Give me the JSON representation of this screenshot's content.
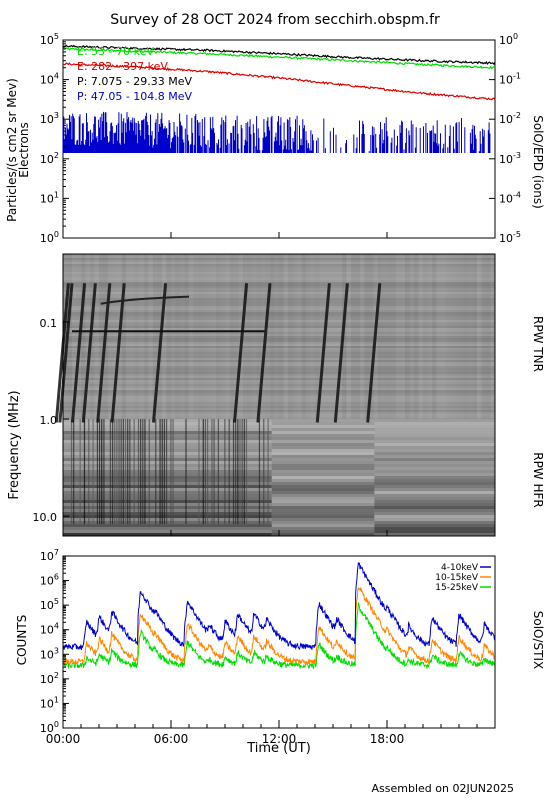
{
  "title": "Survey of 28 OCT 2024 from secchirh.obspm.fr",
  "footer": "Assembled on 02JUN2025",
  "chart_data": [
    {
      "id": "epd",
      "type": "line",
      "yscale": "log",
      "ylim": [
        1,
        100000
      ],
      "y2lim": [
        1e-05,
        1
      ],
      "ylabel": "Particles/(s cm2 sr Mev)",
      "ylabel2": "Electrons",
      "right_label": "SolO/EPD (ions)",
      "y_ticks": [
        "10^0",
        "10^1",
        "10^2",
        "10^3",
        "10^4",
        "10^5"
      ],
      "y2_ticks": [
        "10^-5",
        "10^-4",
        "10^-3",
        "10^-2",
        "10^-1",
        "10^0"
      ],
      "xlim_hours": [
        0,
        24
      ],
      "series": [
        {
          "name": "E: 53 - 70 keV",
          "color": "#00dd00",
          "x": [
            0,
            4,
            8,
            12,
            16,
            20,
            24
          ],
          "y": [
            60000,
            52000,
            45000,
            37000,
            30000,
            24000,
            20000
          ]
        },
        {
          "name": "E: 282 - 397 keV",
          "color": "#dd0000",
          "x": [
            0,
            4,
            8,
            12,
            16,
            20,
            24
          ],
          "y": [
            25000,
            21000,
            16000,
            11000,
            7000,
            4500,
            3200
          ]
        },
        {
          "name": "P: 7.075 - 29.33 MeV",
          "color": "#000000",
          "x": [
            0,
            4,
            8,
            12,
            16,
            20,
            24
          ],
          "y": [
            70000,
            62000,
            55000,
            45000,
            36000,
            30000,
            26000
          ]
        },
        {
          "name": "P: 47.05 - 104.8 MeV",
          "color": "#0000cc",
          "x": [
            0,
            4,
            8,
            12,
            16,
            20,
            24
          ],
          "y": [
            400,
            350,
            330,
            300,
            280,
            270,
            260
          ]
        }
      ]
    },
    {
      "id": "rpw",
      "type": "heatmap",
      "ylabel": "Frequency (MHz)",
      "y_ticks": [
        "0.1",
        "1.0",
        "10.0"
      ],
      "yscale": "log",
      "ylim_mhz": [
        0.02,
        16
      ],
      "labels_right": [
        "RPW TNR",
        "RPW HFR"
      ],
      "colormap": "grayscale",
      "burst_hours": [
        0.3,
        0.5,
        1.2,
        1.8,
        2.6,
        3.4,
        5.7,
        10.2,
        11.5,
        14.8,
        15.8,
        17.6
      ],
      "drifting_line_hours": [
        0.5,
        11.2
      ]
    },
    {
      "id": "stix",
      "type": "line",
      "yscale": "log",
      "ylim": [
        1,
        10000000
      ],
      "ylabel": "COUNTS",
      "right_label": "SolO/STIX",
      "y_ticks": [
        "10^0",
        "10^1",
        "10^2",
        "10^3",
        "10^4",
        "10^5",
        "10^6",
        "10^7"
      ],
      "x_ticks": [
        "00:00",
        "06:00",
        "12:00",
        "18:00"
      ],
      "x_tick_hours": [
        0,
        6,
        12,
        18
      ],
      "xlabel": "Time (UT)",
      "series": [
        {
          "name": "4-10keV",
          "color": "#0000cc",
          "baseline": 2000
        },
        {
          "name": "10-15keV",
          "color": "#ff8800",
          "baseline": 500
        },
        {
          "name": "15-25keV",
          "color": "#00dd00",
          "baseline": 350
        }
      ],
      "flares": [
        {
          "hour": 1.3,
          "peak": 20000
        },
        {
          "hour": 2.0,
          "peak": 30000
        },
        {
          "hour": 2.7,
          "peak": 50000
        },
        {
          "hour": 4.3,
          "peak": 400000
        },
        {
          "hour": 5.1,
          "peak": 20000
        },
        {
          "hour": 6.9,
          "peak": 150000
        },
        {
          "hour": 8.1,
          "peak": 10000
        },
        {
          "hour": 9.0,
          "peak": 20000
        },
        {
          "hour": 9.7,
          "peak": 40000
        },
        {
          "hour": 10.6,
          "peak": 40000
        },
        {
          "hour": 11.3,
          "peak": 20000
        },
        {
          "hour": 14.2,
          "peak": 120000
        },
        {
          "hour": 15.2,
          "peak": 20000
        },
        {
          "hour": 16.4,
          "peak": 5000000
        },
        {
          "hour": 18.0,
          "peak": 30000
        },
        {
          "hour": 19.2,
          "peak": 10000
        },
        {
          "hour": 20.5,
          "peak": 30000
        },
        {
          "hour": 22.0,
          "peak": 40000
        },
        {
          "hour": 23.4,
          "peak": 15000
        }
      ]
    }
  ]
}
